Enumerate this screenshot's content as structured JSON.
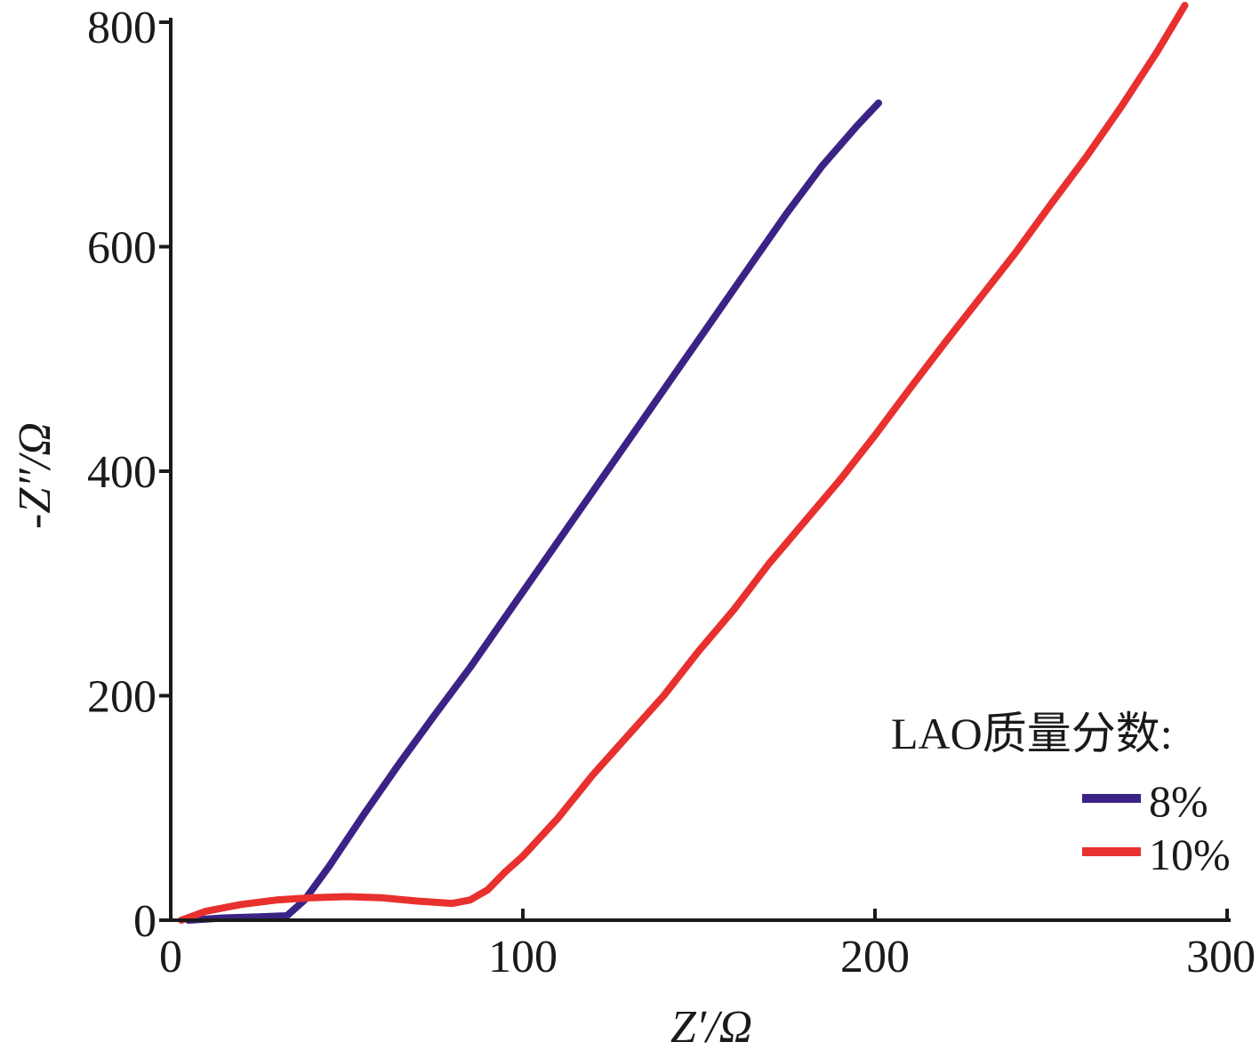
{
  "chart_data": {
    "type": "line",
    "xlabel": "Z′/Ω",
    "ylabel": "-Z″/Ω",
    "xlim": [
      0,
      300
    ],
    "ylim": [
      0,
      800
    ],
    "xticks": [
      "0",
      "100",
      "200",
      "300"
    ],
    "yticks": [
      "0",
      "200",
      "400",
      "600",
      "800"
    ],
    "grid": false,
    "legend": {
      "title": "LAO质量分数:",
      "placement": "bottom-right"
    },
    "series": [
      {
        "name": "8%",
        "color": "#3b2386",
        "x": [
          5,
          15,
          25,
          33,
          38,
          45,
          55,
          65,
          75,
          85,
          95,
          105,
          115,
          125,
          135,
          145,
          155,
          165,
          175,
          185,
          195,
          201
        ],
        "y": [
          0,
          2,
          3,
          4,
          18,
          48,
          95,
          140,
          183,
          225,
          270,
          315,
          360,
          405,
          450,
          495,
          540,
          585,
          630,
          672,
          708,
          728
        ]
      },
      {
        "name": "10%",
        "color": "#e8302e",
        "x": [
          3,
          10,
          20,
          30,
          40,
          50,
          60,
          70,
          80,
          85,
          90,
          95,
          100,
          110,
          120,
          130,
          140,
          150,
          160,
          170,
          180,
          190,
          200,
          210,
          220,
          230,
          240,
          250,
          260,
          270,
          280,
          288
        ],
        "y": [
          0,
          8,
          14,
          18,
          20,
          21,
          20,
          17,
          15,
          18,
          27,
          43,
          57,
          91,
          130,
          165,
          200,
          240,
          277,
          318,
          355,
          392,
          432,
          474,
          515,
          555,
          595,
          638,
          680,
          725,
          773,
          815
        ]
      }
    ]
  }
}
